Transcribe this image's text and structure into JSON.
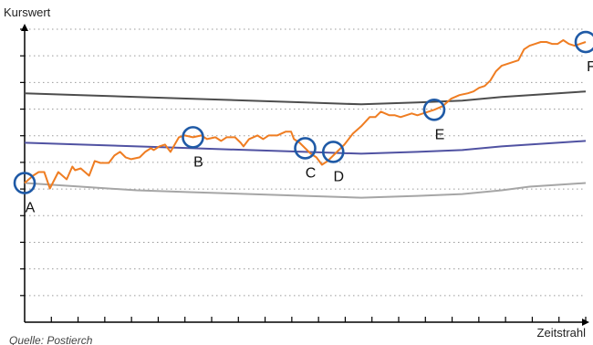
{
  "chart_data": {
    "type": "line",
    "ylabel": "Kurswert",
    "xlabel": "Zeitstrahl",
    "source": "Quelle: Postierch",
    "grid": true,
    "x_ticks": 21,
    "y_gridlines": 11,
    "series": [
      {
        "color": "#ef7d22",
        "values": [
          [
            0,
            7.6
          ],
          [
            1.5,
            8.0
          ],
          [
            2.5,
            8.2
          ],
          [
            3.5,
            8.2
          ],
          [
            4.5,
            7.3
          ],
          [
            6,
            8.2
          ],
          [
            7.5,
            7.8
          ],
          [
            8.5,
            8.5
          ],
          [
            9,
            8.3
          ],
          [
            10,
            8.4
          ],
          [
            11.5,
            8.0
          ],
          [
            12.5,
            8.8
          ],
          [
            13.5,
            8.7
          ],
          [
            15,
            8.7
          ],
          [
            16,
            9.1
          ],
          [
            17,
            9.3
          ],
          [
            18,
            9.0
          ],
          [
            19,
            8.9
          ],
          [
            20.5,
            9.0
          ],
          [
            21.5,
            9.3
          ],
          [
            22.5,
            9.5
          ],
          [
            23,
            9.4
          ],
          [
            24,
            9.6
          ],
          [
            25,
            9.7
          ],
          [
            26,
            9.3
          ],
          [
            27.5,
            10.1
          ],
          [
            28.5,
            10.2
          ],
          [
            30,
            10.1
          ],
          [
            31.5,
            10.2
          ],
          [
            32.5,
            10.0
          ],
          [
            34,
            10.1
          ],
          [
            35,
            9.9
          ],
          [
            36,
            10.1
          ],
          [
            37.5,
            10.1
          ],
          [
            38.5,
            9.8
          ],
          [
            39,
            9.6
          ],
          [
            40,
            10.0
          ],
          [
            41.5,
            10.2
          ],
          [
            42.5,
            10.0
          ],
          [
            43.5,
            10.2
          ],
          [
            45,
            10.2
          ],
          [
            46.5,
            10.4
          ],
          [
            47.5,
            10.4
          ],
          [
            48,
            10.0
          ],
          [
            49,
            9.8
          ],
          [
            50,
            9.5
          ],
          [
            51,
            9.2
          ],
          [
            52,
            9.0
          ],
          [
            53,
            8.6
          ],
          [
            54,
            8.8
          ],
          [
            55,
            9.1
          ],
          [
            57,
            9.7
          ],
          [
            58.5,
            10.3
          ],
          [
            60,
            10.7
          ],
          [
            61.5,
            11.2
          ],
          [
            62.5,
            11.2
          ],
          [
            63.5,
            11.5
          ],
          [
            65,
            11.3
          ],
          [
            66,
            11.3
          ],
          [
            67,
            11.2
          ],
          [
            68,
            11.3
          ],
          [
            69,
            11.4
          ],
          [
            70,
            11.3
          ],
          [
            71,
            11.4
          ],
          [
            73,
            11.6
          ],
          [
            74.5,
            11.8
          ],
          [
            76,
            12.2
          ],
          [
            77.5,
            12.4
          ],
          [
            79,
            12.5
          ],
          [
            80,
            12.6
          ],
          [
            81,
            12.8
          ],
          [
            82,
            12.9
          ],
          [
            83,
            13.2
          ],
          [
            84,
            13.7
          ],
          [
            85,
            14.0
          ],
          [
            87,
            14.2
          ],
          [
            88,
            14.3
          ],
          [
            89,
            14.9
          ],
          [
            90,
            15.1
          ],
          [
            91,
            15.2
          ],
          [
            92,
            15.3
          ],
          [
            93,
            15.3
          ],
          [
            94,
            15.2
          ],
          [
            95,
            15.2
          ],
          [
            96,
            15.4
          ],
          [
            97,
            15.2
          ],
          [
            98,
            15.1
          ],
          [
            99,
            15.2
          ],
          [
            100,
            15.3
          ]
        ]
      },
      {
        "color": "#4d4d4d",
        "values": [
          [
            0,
            12.5
          ],
          [
            10,
            12.4
          ],
          [
            20,
            12.3
          ],
          [
            30,
            12.2
          ],
          [
            40,
            12.1
          ],
          [
            50,
            12.0
          ],
          [
            60,
            11.9
          ],
          [
            70,
            12.0
          ],
          [
            78,
            12.1
          ],
          [
            85,
            12.3
          ],
          [
            90,
            12.4
          ],
          [
            95,
            12.5
          ],
          [
            100,
            12.6
          ]
        ]
      },
      {
        "color": "#5052a2",
        "values": [
          [
            0,
            9.8
          ],
          [
            10,
            9.7
          ],
          [
            20,
            9.6
          ],
          [
            30,
            9.5
          ],
          [
            40,
            9.4
          ],
          [
            50,
            9.3
          ],
          [
            60,
            9.2
          ],
          [
            70,
            9.3
          ],
          [
            78,
            9.4
          ],
          [
            85,
            9.6
          ],
          [
            90,
            9.7
          ],
          [
            95,
            9.8
          ],
          [
            100,
            9.9
          ]
        ]
      },
      {
        "color": "#a6a6a6",
        "values": [
          [
            0,
            7.6
          ],
          [
            10,
            7.4
          ],
          [
            20,
            7.2
          ],
          [
            30,
            7.1
          ],
          [
            40,
            7.0
          ],
          [
            50,
            6.9
          ],
          [
            60,
            6.8
          ],
          [
            70,
            6.9
          ],
          [
            78,
            7.0
          ],
          [
            85,
            7.2
          ],
          [
            90,
            7.4
          ],
          [
            95,
            7.5
          ],
          [
            100,
            7.6
          ]
        ]
      }
    ],
    "markers": [
      {
        "label": "A",
        "x": 0,
        "y": 7.6
      },
      {
        "label": "B",
        "x": 30,
        "y": 10.1
      },
      {
        "label": "C",
        "x": 50,
        "y": 9.5
      },
      {
        "label": "D",
        "x": 55,
        "y": 9.3
      },
      {
        "label": "E",
        "x": 73,
        "y": 11.6
      },
      {
        "label": "F",
        "x": 100,
        "y": 15.3
      }
    ]
  }
}
